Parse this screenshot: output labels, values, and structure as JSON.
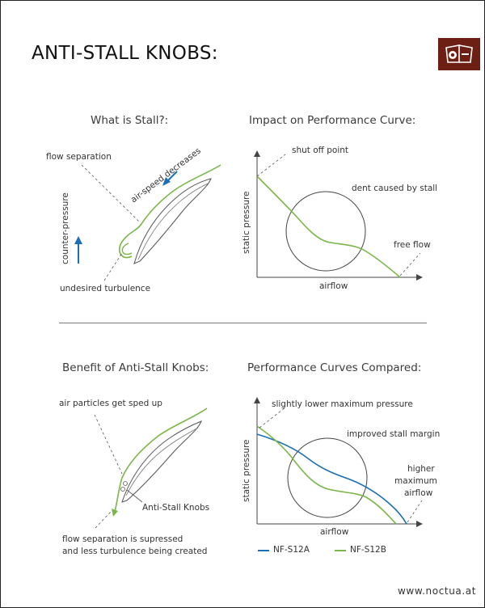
{
  "title": "ANTI-STALL KNOBS:",
  "logo": {
    "icon": "owl-logo"
  },
  "sections": {
    "what_is_stall": {
      "heading": "What is Stall?:",
      "flow_separation": "flow separation",
      "air_speed": "air-speed decreases",
      "counter_pressure": "counter-pressure",
      "undesired_turbulence": "undesired turbulence"
    },
    "impact": {
      "heading": "Impact on Performance Curve:",
      "shut_off": "shut off point",
      "dent": "dent caused by stall",
      "free_flow": "free flow",
      "ylabel": "static pressure",
      "xlabel": "airflow"
    },
    "benefit": {
      "heading": "Benefit of Anti-Stall Knobs:",
      "sped_up": "air particles get sped up",
      "knobs": "Anti-Stall Knobs",
      "suppressed_line1": "flow separation is supressed",
      "suppressed_line2": "and less turbulence being created"
    },
    "compared": {
      "heading": "Performance Curves Compared:",
      "lower_max": "slightly lower maximum pressure",
      "stall_margin": "improved stall margin",
      "higher_line1": "higher",
      "higher_line2": "maximum",
      "higher_line3": "airflow",
      "ylabel": "static pressure",
      "xlabel": "airflow",
      "legend": [
        {
          "label": "NF-S12A",
          "color": "#1a6fb5"
        },
        {
          "label": "NF-S12B",
          "color": "#7ab648"
        }
      ]
    }
  },
  "colors": {
    "green": "#7ab648",
    "blue": "#1a6fb5",
    "gray": "#666666",
    "brand": "#6d1f14"
  },
  "footer": "www.noctua.at"
}
